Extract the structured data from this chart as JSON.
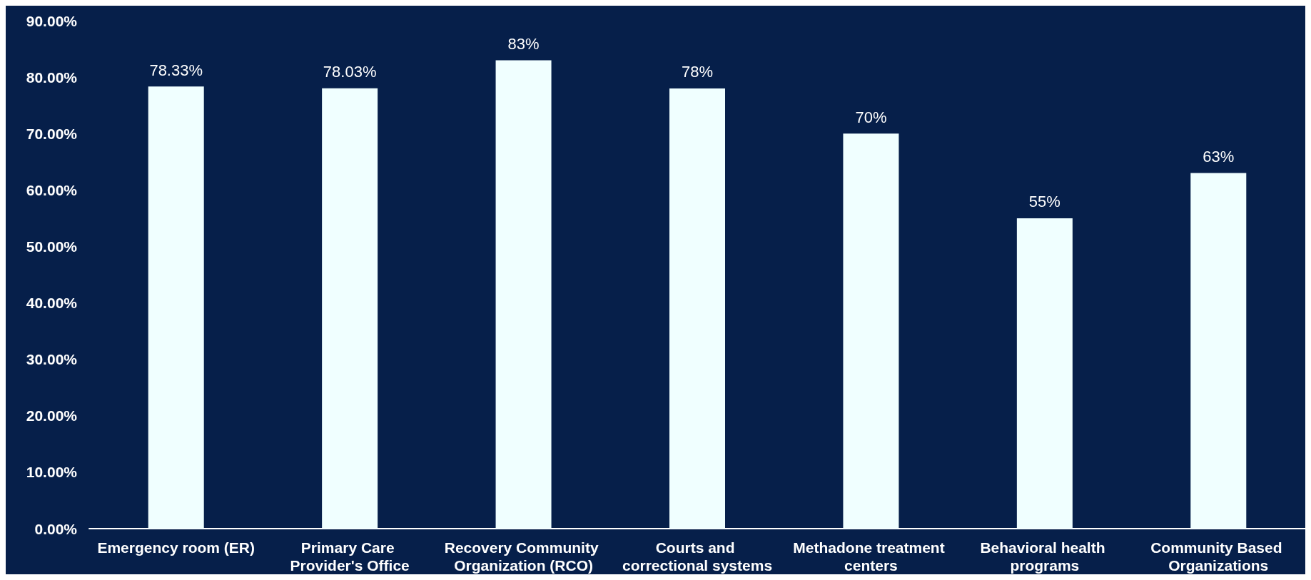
{
  "chart_data": {
    "type": "bar",
    "categories": [
      "Emergency room (ER)",
      "Primary Care Provider's Office",
      "Recovery Community Organization (RCO)",
      "Courts and correctional systems",
      "Methadone treatment centers",
      "Behavioral health programs",
      "Community Based Organizations"
    ],
    "values": [
      78.33,
      78.03,
      83,
      78,
      70,
      55,
      63
    ],
    "value_labels": [
      "78.33%",
      "78.03%",
      "83%",
      "78%",
      "70%",
      "55%",
      "63%"
    ],
    "color": "#f0ffff",
    "ylim": [
      0,
      90
    ],
    "yticks": [
      {
        "value": 0,
        "label": "0.00%"
      },
      {
        "value": 10,
        "label": "10.00%"
      },
      {
        "value": 20,
        "label": "20.00%"
      },
      {
        "value": 30,
        "label": "30.00%"
      },
      {
        "value": 40,
        "label": "40.00%"
      },
      {
        "value": 50,
        "label": "50.00%"
      },
      {
        "value": 60,
        "label": "60.00%"
      },
      {
        "value": 70,
        "label": "70.00%"
      },
      {
        "value": 80,
        "label": "80.00%"
      },
      {
        "value": 90,
        "label": "90.00%"
      }
    ],
    "grid": false
  }
}
